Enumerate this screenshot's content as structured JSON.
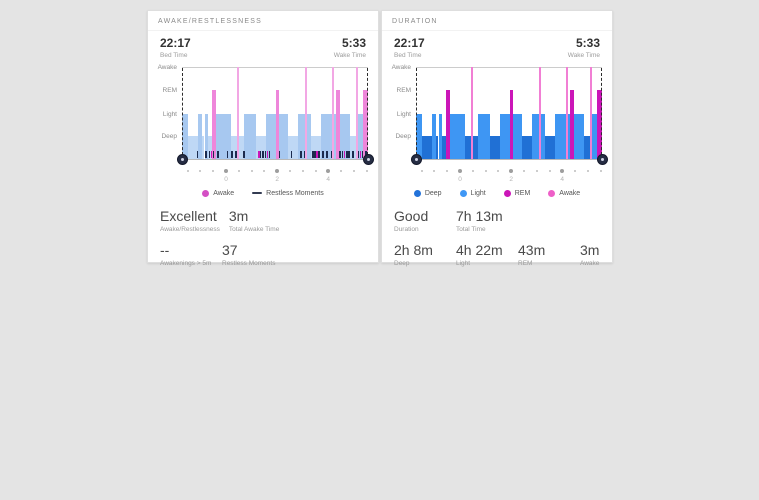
{
  "page": {
    "background": "#e4e4e4"
  },
  "cards": [
    {
      "header": "AWAKE/RESTLESSNESS",
      "bed_time": {
        "value": "22:17",
        "label": "Bed Time"
      },
      "wake_time": {
        "value": "5:33",
        "label": "Wake Time"
      },
      "legend": [
        {
          "label": "Awake",
          "shape": "dot",
          "color": "#d44fc4"
        },
        {
          "label": "Restless Moments",
          "shape": "dash",
          "color": "#333b52"
        }
      ],
      "stats_rows": [
        [
          {
            "value": "Excellent",
            "label": "Awake/Restlessness"
          },
          {
            "value": "3m",
            "label": "Total Awake Time"
          }
        ],
        [
          {
            "value": "--",
            "label": "Awakenings > 5m"
          },
          {
            "value": "37",
            "label": "Restless Moments"
          }
        ]
      ],
      "chart_data": {
        "type": "hypnogram",
        "title": "Awake/Restlessness",
        "y_levels": [
          "Awake",
          "REM",
          "Light",
          "Deep"
        ],
        "colors": {
          "light": "#a7c8f0",
          "deep": "#bfd8f5",
          "rem": "#ee86da",
          "awake_line": "#f2a7e4",
          "tick_dark": "#1c2b4e",
          "tick_accent": "#cb16b8"
        },
        "segments": [
          {
            "s": 0.0,
            "e": 0.032,
            "level": "light"
          },
          {
            "s": 0.032,
            "e": 0.086,
            "level": "deep"
          },
          {
            "s": 0.086,
            "e": 0.107,
            "level": "light"
          },
          {
            "s": 0.109,
            "e": 0.119,
            "level": "deep"
          },
          {
            "s": 0.121,
            "e": 0.14,
            "level": "light"
          },
          {
            "s": 0.14,
            "e": 0.161,
            "level": "deep"
          },
          {
            "s": 0.161,
            "e": 0.184,
            "level": "rem"
          },
          {
            "s": 0.184,
            "e": 0.263,
            "level": "light"
          },
          {
            "s": 0.263,
            "e": 0.333,
            "level": "deep"
          },
          {
            "s": 0.333,
            "e": 0.398,
            "level": "light"
          },
          {
            "s": 0.398,
            "e": 0.452,
            "level": "deep"
          },
          {
            "s": 0.452,
            "e": 0.505,
            "level": "light"
          },
          {
            "s": 0.505,
            "e": 0.523,
            "level": "rem"
          },
          {
            "s": 0.523,
            "e": 0.57,
            "level": "light"
          },
          {
            "s": 0.57,
            "e": 0.624,
            "level": "deep"
          },
          {
            "s": 0.624,
            "e": 0.694,
            "level": "light"
          },
          {
            "s": 0.694,
            "e": 0.747,
            "level": "deep"
          },
          {
            "s": 0.747,
            "e": 0.828,
            "level": "light"
          },
          {
            "s": 0.828,
            "e": 0.852,
            "level": "rem"
          },
          {
            "s": 0.852,
            "e": 0.905,
            "level": "light"
          },
          {
            "s": 0.905,
            "e": 0.938,
            "level": "deep"
          },
          {
            "s": 0.938,
            "e": 0.975,
            "level": "light"
          },
          {
            "s": 0.975,
            "e": 1.0,
            "level": "rem"
          }
        ],
        "awake_lines": [
          0.298,
          0.662,
          0.808,
          0.936
        ],
        "restless_ticks": [
          {
            "f": 0.08,
            "type": "dark"
          },
          {
            "f": 0.125,
            "type": "dark"
          },
          {
            "f": 0.145,
            "type": "dark"
          },
          {
            "f": 0.155,
            "type": "accent"
          },
          {
            "f": 0.165,
            "type": "dark"
          },
          {
            "f": 0.19,
            "type": "dark"
          },
          {
            "f": 0.24,
            "type": "dark"
          },
          {
            "f": 0.265,
            "type": "dark"
          },
          {
            "f": 0.285,
            "type": "dark"
          },
          {
            "f": 0.33,
            "type": "dark"
          },
          {
            "f": 0.41,
            "type": "accent"
          },
          {
            "f": 0.418,
            "type": "dark"
          },
          {
            "f": 0.432,
            "type": "dark"
          },
          {
            "f": 0.446,
            "type": "dark"
          },
          {
            "f": 0.455,
            "type": "accent"
          },
          {
            "f": 0.467,
            "type": "dark"
          },
          {
            "f": 0.52,
            "type": "dark"
          },
          {
            "f": 0.585,
            "type": "dark"
          },
          {
            "f": 0.635,
            "type": "dark"
          },
          {
            "f": 0.655,
            "type": "dark"
          },
          {
            "f": 0.7,
            "type": "dark"
          },
          {
            "f": 0.712,
            "type": "dark"
          },
          {
            "f": 0.722,
            "type": "accent"
          },
          {
            "f": 0.733,
            "type": "dark"
          },
          {
            "f": 0.755,
            "type": "dark"
          },
          {
            "f": 0.775,
            "type": "dark"
          },
          {
            "f": 0.8,
            "type": "dark"
          },
          {
            "f": 0.845,
            "type": "dark"
          },
          {
            "f": 0.858,
            "type": "dark"
          },
          {
            "f": 0.87,
            "type": "accent"
          },
          {
            "f": 0.883,
            "type": "dark"
          },
          {
            "f": 0.895,
            "type": "dark"
          },
          {
            "f": 0.915,
            "type": "dark"
          },
          {
            "f": 0.945,
            "type": "dark"
          },
          {
            "f": 0.955,
            "type": "accent"
          },
          {
            "f": 0.967,
            "type": "dark"
          },
          {
            "f": 0.985,
            "type": "dark"
          }
        ],
        "x_ticks": [
          {
            "f": 0.03
          },
          {
            "f": 0.099
          },
          {
            "f": 0.168
          },
          {
            "f": 0.237,
            "label": "0"
          },
          {
            "f": 0.306
          },
          {
            "f": 0.374
          },
          {
            "f": 0.443
          },
          {
            "f": 0.512,
            "label": "2"
          },
          {
            "f": 0.58
          },
          {
            "f": 0.649
          },
          {
            "f": 0.718
          },
          {
            "f": 0.786,
            "label": "4"
          },
          {
            "f": 0.855
          },
          {
            "f": 0.924
          },
          {
            "f": 0.992
          }
        ]
      }
    },
    {
      "header": "DURATION",
      "bed_time": {
        "value": "22:17",
        "label": "Bed Time"
      },
      "wake_time": {
        "value": "5:33",
        "label": "Wake Time"
      },
      "legend": [
        {
          "label": "Deep",
          "shape": "dot",
          "color": "#2272d9"
        },
        {
          "label": "Light",
          "shape": "dot",
          "color": "#3f97f5"
        },
        {
          "label": "REM",
          "shape": "dot",
          "color": "#cb16b8"
        },
        {
          "label": "Awake",
          "shape": "dot",
          "color": "#ee5fc8"
        }
      ],
      "stats_rows": [
        [
          {
            "value": "Good",
            "label": "Duration"
          },
          {
            "value": "7h 13m",
            "label": "Total Time"
          }
        ],
        [
          {
            "value": "2h 8m",
            "label": "Deep"
          },
          {
            "value": "4h 22m",
            "label": "Light"
          },
          {
            "value": "43m",
            "label": "REM"
          },
          {
            "value": "3m",
            "label": "Awake"
          }
        ]
      ],
      "chart_data": {
        "type": "hypnogram",
        "title": "Duration",
        "y_levels": [
          "Awake",
          "REM",
          "Light",
          "Deep"
        ],
        "colors": {
          "light": "#3e96f3",
          "deep": "#2070d5",
          "rem": "#cb16b8",
          "awake_line": "#f17fd4"
        },
        "segments": [
          {
            "s": 0.0,
            "e": 0.032,
            "level": "light"
          },
          {
            "s": 0.032,
            "e": 0.086,
            "level": "deep"
          },
          {
            "s": 0.086,
            "e": 0.107,
            "level": "light"
          },
          {
            "s": 0.109,
            "e": 0.119,
            "level": "deep"
          },
          {
            "s": 0.121,
            "e": 0.14,
            "level": "light"
          },
          {
            "s": 0.14,
            "e": 0.161,
            "level": "deep"
          },
          {
            "s": 0.161,
            "e": 0.184,
            "level": "rem"
          },
          {
            "s": 0.184,
            "e": 0.263,
            "level": "light"
          },
          {
            "s": 0.263,
            "e": 0.333,
            "level": "deep"
          },
          {
            "s": 0.333,
            "e": 0.398,
            "level": "light"
          },
          {
            "s": 0.398,
            "e": 0.452,
            "level": "deep"
          },
          {
            "s": 0.452,
            "e": 0.505,
            "level": "light"
          },
          {
            "s": 0.505,
            "e": 0.523,
            "level": "rem"
          },
          {
            "s": 0.523,
            "e": 0.57,
            "level": "light"
          },
          {
            "s": 0.57,
            "e": 0.624,
            "level": "deep"
          },
          {
            "s": 0.624,
            "e": 0.694,
            "level": "light"
          },
          {
            "s": 0.694,
            "e": 0.747,
            "level": "deep"
          },
          {
            "s": 0.747,
            "e": 0.828,
            "level": "light"
          },
          {
            "s": 0.828,
            "e": 0.852,
            "level": "rem"
          },
          {
            "s": 0.852,
            "e": 0.905,
            "level": "light"
          },
          {
            "s": 0.905,
            "e": 0.938,
            "level": "deep"
          },
          {
            "s": 0.938,
            "e": 0.975,
            "level": "light"
          },
          {
            "s": 0.975,
            "e": 1.0,
            "level": "rem"
          }
        ],
        "awake_lines": [
          0.298,
          0.662,
          0.808,
          0.936
        ],
        "restless_ticks": [],
        "x_ticks": [
          {
            "f": 0.03
          },
          {
            "f": 0.099
          },
          {
            "f": 0.168
          },
          {
            "f": 0.237,
            "label": "0"
          },
          {
            "f": 0.306
          },
          {
            "f": 0.374
          },
          {
            "f": 0.443
          },
          {
            "f": 0.512,
            "label": "2"
          },
          {
            "f": 0.58
          },
          {
            "f": 0.649
          },
          {
            "f": 0.718
          },
          {
            "f": 0.786,
            "label": "4"
          },
          {
            "f": 0.855
          },
          {
            "f": 0.924
          },
          {
            "f": 0.992
          }
        ]
      }
    }
  ]
}
